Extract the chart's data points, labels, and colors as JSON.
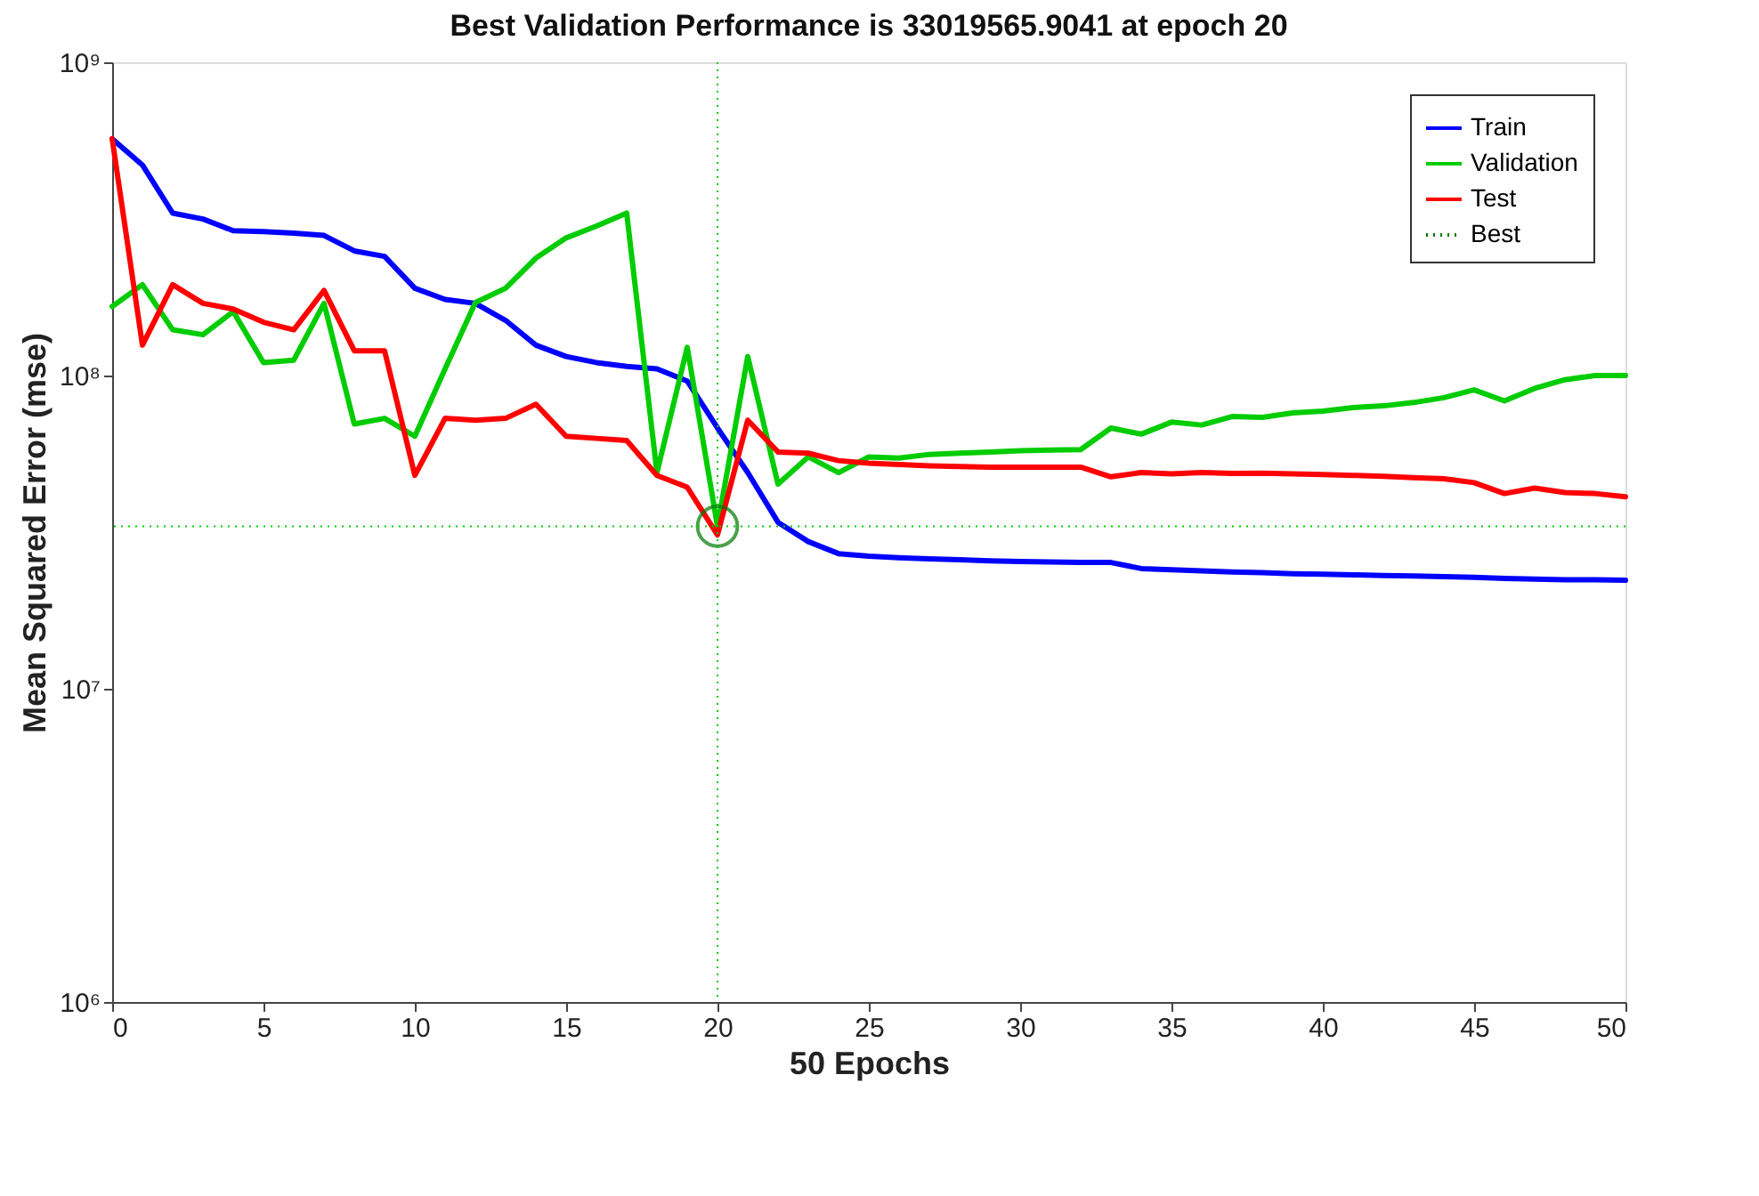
{
  "chart_data": {
    "type": "line",
    "title": "Best Validation Performance is 33019565.9041 at epoch 20",
    "xlabel": "50 Epochs",
    "ylabel": "Mean Squared Error  (mse)",
    "x": [
      0,
      1,
      2,
      3,
      4,
      5,
      6,
      7,
      8,
      9,
      10,
      11,
      12,
      13,
      14,
      15,
      16,
      17,
      18,
      19,
      20,
      21,
      22,
      23,
      24,
      25,
      26,
      27,
      28,
      29,
      30,
      31,
      32,
      33,
      34,
      35,
      36,
      37,
      38,
      39,
      40,
      41,
      42,
      43,
      44,
      45,
      46,
      47,
      48,
      49,
      50
    ],
    "series": [
      {
        "name": "Train",
        "color": "#0000ff",
        "line_style": "solid",
        "values": [
          570000000,
          470000000,
          330000000,
          316000000,
          290000000,
          288000000,
          285000000,
          280000000,
          250000000,
          240000000,
          190000000,
          175000000,
          170000000,
          150000000,
          125000000,
          115000000,
          110000000,
          107000000,
          105000000,
          96000000,
          68000000,
          49000000,
          34000000,
          29500000,
          27000000,
          26500000,
          26200000,
          26000000,
          25800000,
          25600000,
          25500000,
          25400000,
          25300000,
          25300000,
          24200000,
          24000000,
          23800000,
          23600000,
          23500000,
          23300000,
          23200000,
          23100000,
          23000000,
          22900000,
          22800000,
          22700000,
          22500000,
          22400000,
          22300000,
          22300000,
          22200000
        ]
      },
      {
        "name": "Validation",
        "color": "#00cc00",
        "line_style": "solid",
        "values": [
          166000000,
          195000000,
          140000000,
          135000000,
          160000000,
          110000000,
          112000000,
          170000000,
          70000000,
          73000000,
          64000000,
          105000000,
          171000000,
          190000000,
          237000000,
          275000000,
          300000000,
          330000000,
          49000000,
          123000000,
          33019565.9041,
          115000000,
          45000000,
          55000000,
          49000000,
          55000000,
          54500000,
          56000000,
          56500000,
          57000000,
          57500000,
          57800000,
          58000000,
          68000000,
          65000000,
          71000000,
          69500000,
          74000000,
          73500000,
          76000000,
          77000000,
          79000000,
          80000000,
          82000000,
          85000000,
          90000000,
          83000000,
          91000000,
          97000000,
          100000000,
          100000000
        ]
      },
      {
        "name": "Test",
        "color": "#ff0000",
        "line_style": "solid",
        "values": [
          570000000,
          125000000,
          195000000,
          170000000,
          163000000,
          148000000,
          140000000,
          187000000,
          120000000,
          120000000,
          48000000,
          73000000,
          72000000,
          73000000,
          81000000,
          64000000,
          63000000,
          62000000,
          48000000,
          44000000,
          31000000,
          72000000,
          57000000,
          56500000,
          53500000,
          52500000,
          52000000,
          51500000,
          51200000,
          51000000,
          51000000,
          51000000,
          51000000,
          47500000,
          49000000,
          48500000,
          49000000,
          48700000,
          48800000,
          48500000,
          48300000,
          48000000,
          47700000,
          47200000,
          46800000,
          45500000,
          42000000,
          43700000,
          42300000,
          42000000,
          41000000
        ]
      },
      {
        "name": "Best",
        "type": "scatter",
        "marker": "circle",
        "color": "#007a00",
        "line_style": "dotted",
        "x": [
          20
        ],
        "values": [
          33019565.9041
        ]
      }
    ],
    "ref_lines": [
      {
        "axis": "x",
        "value": 20,
        "color": "#00cc00",
        "line_style": "dotted"
      },
      {
        "axis": "y",
        "value": 33019565.9041,
        "color": "#00cc00",
        "line_style": "dotted"
      }
    ],
    "xlim": [
      0,
      50
    ],
    "xticks": [
      0,
      5,
      10,
      15,
      20,
      25,
      30,
      35,
      40,
      45,
      50
    ],
    "ylim": [
      1000000,
      1000000000
    ],
    "yticks": [
      {
        "value": 1000000,
        "label": "10⁶"
      },
      {
        "value": 10000000,
        "label": "10⁷"
      },
      {
        "value": 100000000,
        "label": "10⁸"
      },
      {
        "value": 1000000000,
        "label": "10⁹"
      }
    ],
    "log": "y",
    "grid": false,
    "legend": "top right"
  }
}
